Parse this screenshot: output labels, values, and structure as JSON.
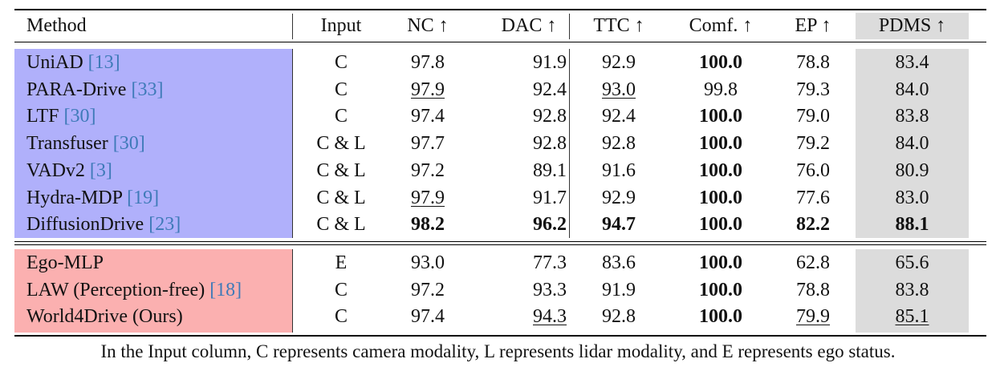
{
  "colors": {
    "group_a": "#b0b0fb",
    "group_b": "#fbb0b0",
    "pdms_highlight": "#dcdcdc"
  },
  "header": {
    "method": "Method",
    "input": "Input",
    "nc": "NC ↑",
    "dac": "DAC ↑",
    "ttc": "TTC ↑",
    "comf": "Comf. ↑",
    "ep": "EP ↑",
    "pdms": "PDMS ↑"
  },
  "group_a": [
    {
      "name": "UniAD",
      "ref": "[13]",
      "input": "C",
      "nc": "97.8",
      "dac": "91.9",
      "ttc": "92.9",
      "comf": "100.0",
      "ep": "78.8",
      "pdms": "83.4"
    },
    {
      "name": "PARA-Drive",
      "ref": "[33]",
      "input": "C",
      "nc": "97.9",
      "dac": "92.4",
      "ttc": "93.0",
      "comf": "99.8",
      "ep": "79.3",
      "pdms": "84.0"
    },
    {
      "name": "LTF",
      "ref": "[30]",
      "input": "C",
      "nc": "97.4",
      "dac": "92.8",
      "ttc": "92.4",
      "comf": "100.0",
      "ep": "79.0",
      "pdms": "83.8"
    },
    {
      "name": "Transfuser",
      "ref": "[30]",
      "input": "C & L",
      "nc": "97.7",
      "dac": "92.8",
      "ttc": "92.8",
      "comf": "100.0",
      "ep": "79.2",
      "pdms": "84.0"
    },
    {
      "name": "VADv2",
      "ref": "[3]",
      "input": "C & L",
      "nc": "97.2",
      "dac": "89.1",
      "ttc": "91.6",
      "comf": "100.0",
      "ep": "76.0",
      "pdms": "80.9"
    },
    {
      "name": "Hydra-MDP",
      "ref": "[19]",
      "input": "C & L",
      "nc": "97.9",
      "dac": "91.7",
      "ttc": "92.9",
      "comf": "100.0",
      "ep": "77.6",
      "pdms": "83.0"
    },
    {
      "name": "DiffusionDrive",
      "ref": "[23]",
      "input": "C & L",
      "nc": "98.2",
      "dac": "96.2",
      "ttc": "94.7",
      "comf": "100.0",
      "ep": "82.2",
      "pdms": "88.1"
    }
  ],
  "group_b": [
    {
      "name": "Ego-MLP",
      "ref": "",
      "input": "E",
      "nc": "93.0",
      "dac": "77.3",
      "ttc": "83.6",
      "comf": "100.0",
      "ep": "62.8",
      "pdms": "65.6"
    },
    {
      "name": "LAW (Perception-free)",
      "ref": "[18]",
      "input": "C",
      "nc": "97.2",
      "dac": "93.3",
      "ttc": "91.9",
      "comf": "100.0",
      "ep": "78.8",
      "pdms": "83.8"
    },
    {
      "name": "World4Drive (Ours)",
      "ref": "",
      "input": "C",
      "nc": "97.4",
      "dac": "94.3",
      "ttc": "92.8",
      "comf": "100.0",
      "ep": "79.9",
      "pdms": "85.1"
    }
  ],
  "bold_cells": [
    "a.0.comf",
    "a.2.comf",
    "a.3.comf",
    "a.4.comf",
    "a.5.comf",
    "a.6.nc",
    "a.6.dac",
    "a.6.ttc",
    "a.6.comf",
    "a.6.ep",
    "a.6.pdms",
    "b.0.comf",
    "b.1.comf",
    "b.2.comf"
  ],
  "underlined_cells": [
    "a.1.nc",
    "a.1.ttc",
    "a.5.nc",
    "b.2.dac",
    "b.2.ep",
    "b.2.pdms"
  ],
  "footnote": "In the Input column, C represents camera modality, L represents lidar modality, and E represents ego status."
}
